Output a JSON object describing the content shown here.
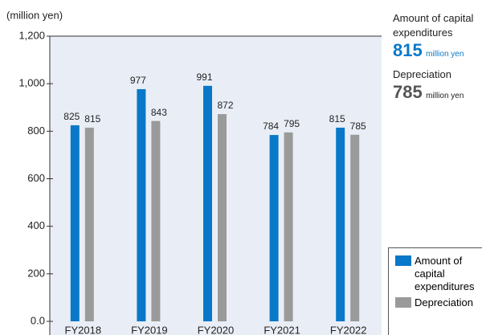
{
  "chart_data": {
    "type": "bar",
    "y_unit_label": "(million yen)",
    "categories": [
      "FY2018",
      "FY2019",
      "FY2020",
      "FY2021",
      "FY2022"
    ],
    "series": [
      {
        "name": "Amount of capital expenditures",
        "color": "#0a78c8",
        "values": [
          825,
          977,
          991,
          784,
          815
        ]
      },
      {
        "name": "Depreciation",
        "color": "#9a9a9a",
        "values": [
          815,
          843,
          872,
          795,
          785
        ]
      }
    ],
    "ylim": [
      0,
      1200
    ],
    "yticks": [
      {
        "value": 0,
        "label": "0.0"
      },
      200,
      400,
      600,
      800,
      {
        "value": 1000,
        "label": "1,000"
      },
      {
        "value": 1200,
        "label": "1,200"
      }
    ],
    "legend": "bottom-right"
  },
  "summary": {
    "capex_label": "Amount of capital expenditures",
    "capex_value": 815,
    "capex_unit": "million yen",
    "depreciation_label": "Depreciation",
    "depreciation_value": 785,
    "depreciation_unit": "million yen"
  }
}
